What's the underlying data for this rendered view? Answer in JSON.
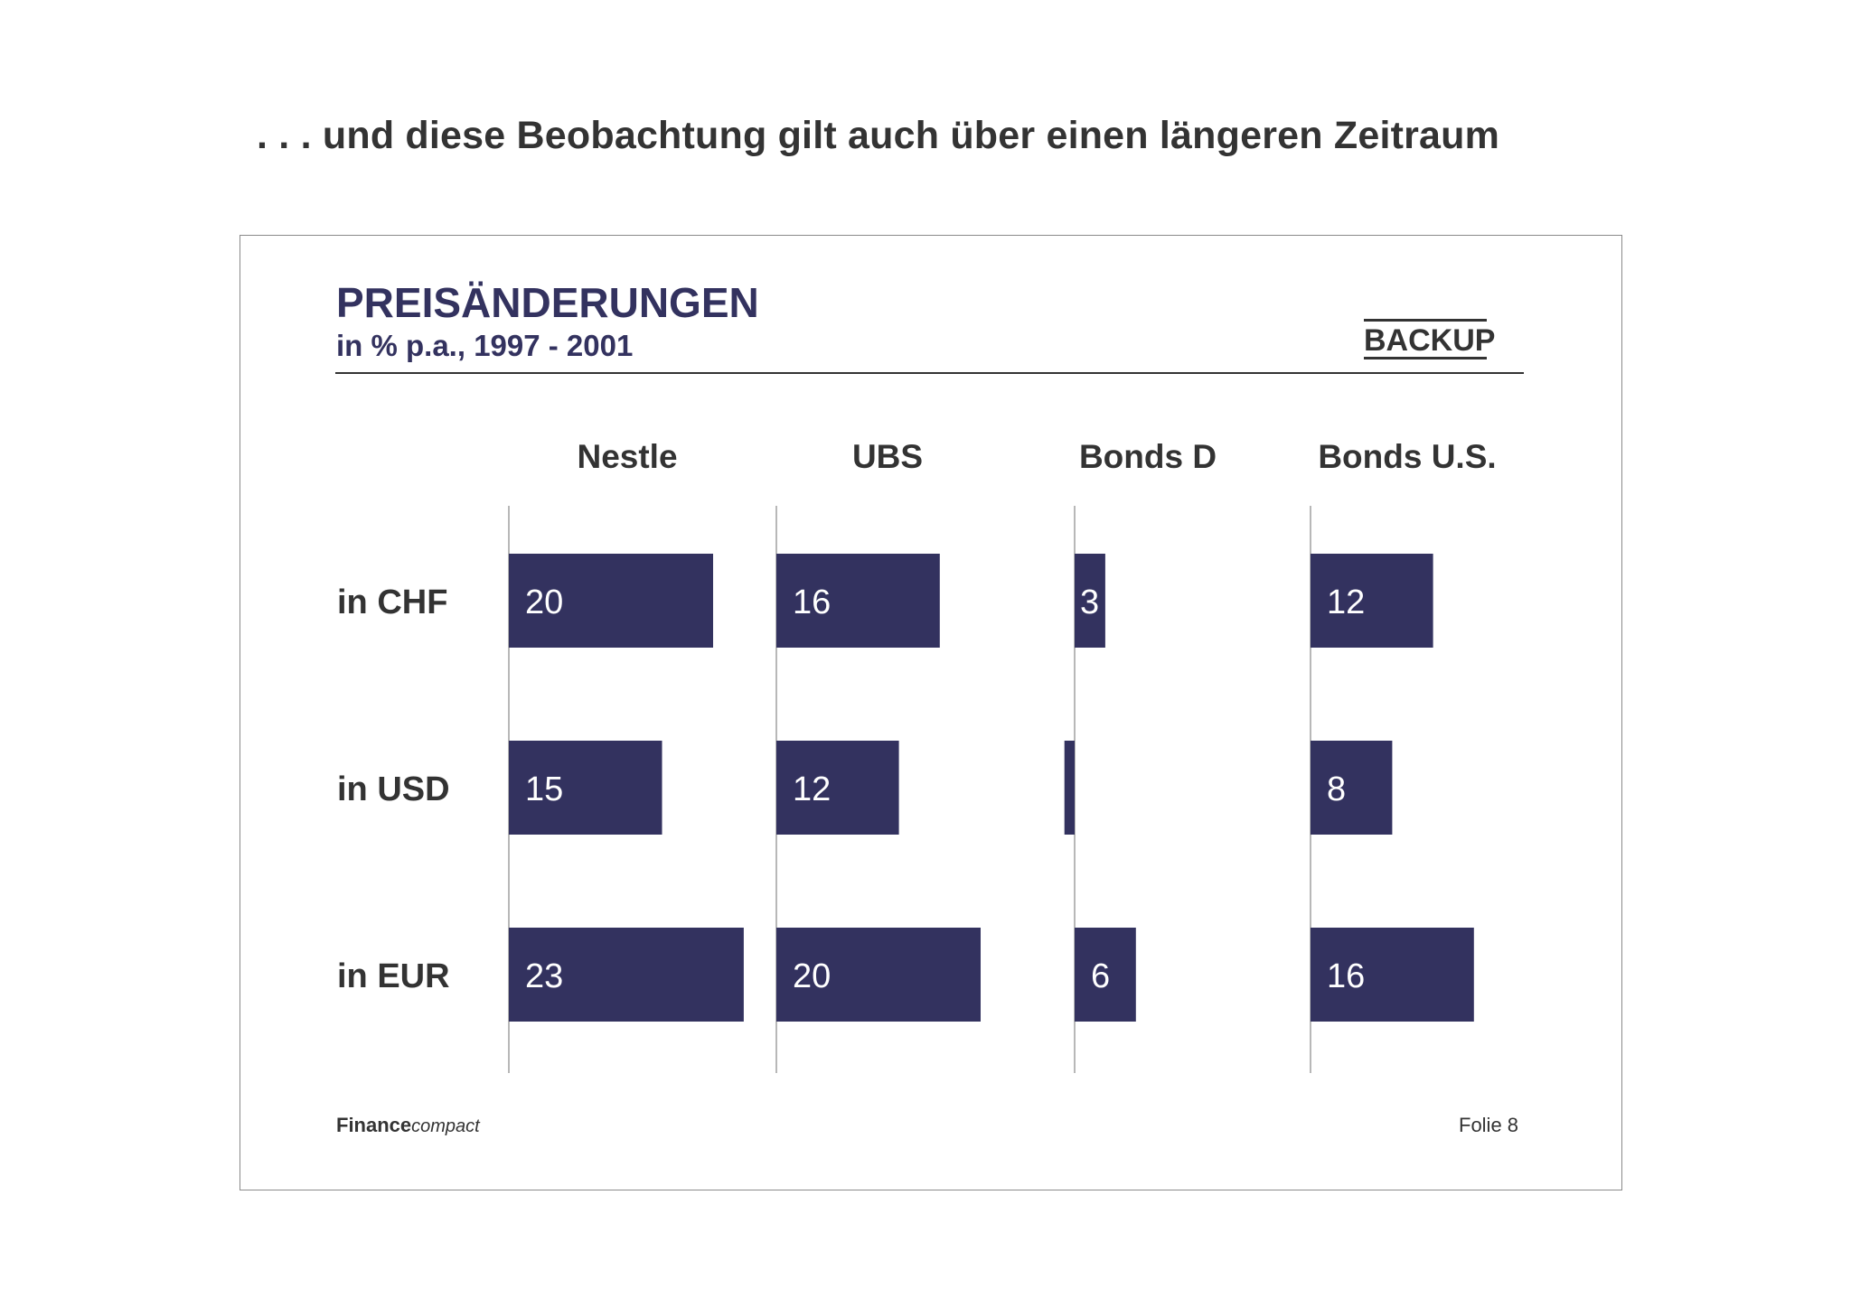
{
  "headline": ". . . und diese Beobachtung gilt auch über einen längeren Zeitraum",
  "backup_label": "BACKUP",
  "footer": {
    "brand_bold": "Finance",
    "brand_italic": "compact",
    "page": "Folie 8"
  },
  "colors": {
    "bar": "#33325f",
    "title": "#33325f",
    "text": "#333333",
    "axis": "#b8b8b8"
  },
  "chart_data": {
    "type": "bar",
    "title": "PREISÄNDERUNGEN",
    "subtitle": "in % p.a., 1997 - 2001",
    "orientation": "horizontal",
    "categories": [
      "in CHF",
      "in USD",
      "in EUR"
    ],
    "series": [
      {
        "name": "Nestle",
        "values": [
          20,
          15,
          23
        ],
        "labels": [
          "20",
          "15",
          "23"
        ]
      },
      {
        "name": "UBS",
        "values": [
          16,
          12,
          20
        ],
        "labels": [
          "16",
          "12",
          "20"
        ]
      },
      {
        "name": "Bonds D",
        "values": [
          3,
          -1,
          6
        ],
        "labels": [
          "3",
          "",
          "6"
        ]
      },
      {
        "name": "Bonds U.S.",
        "values": [
          12,
          8,
          16
        ],
        "labels": [
          "12",
          "8",
          "16"
        ]
      }
    ],
    "grid": false,
    "legend": "none"
  }
}
